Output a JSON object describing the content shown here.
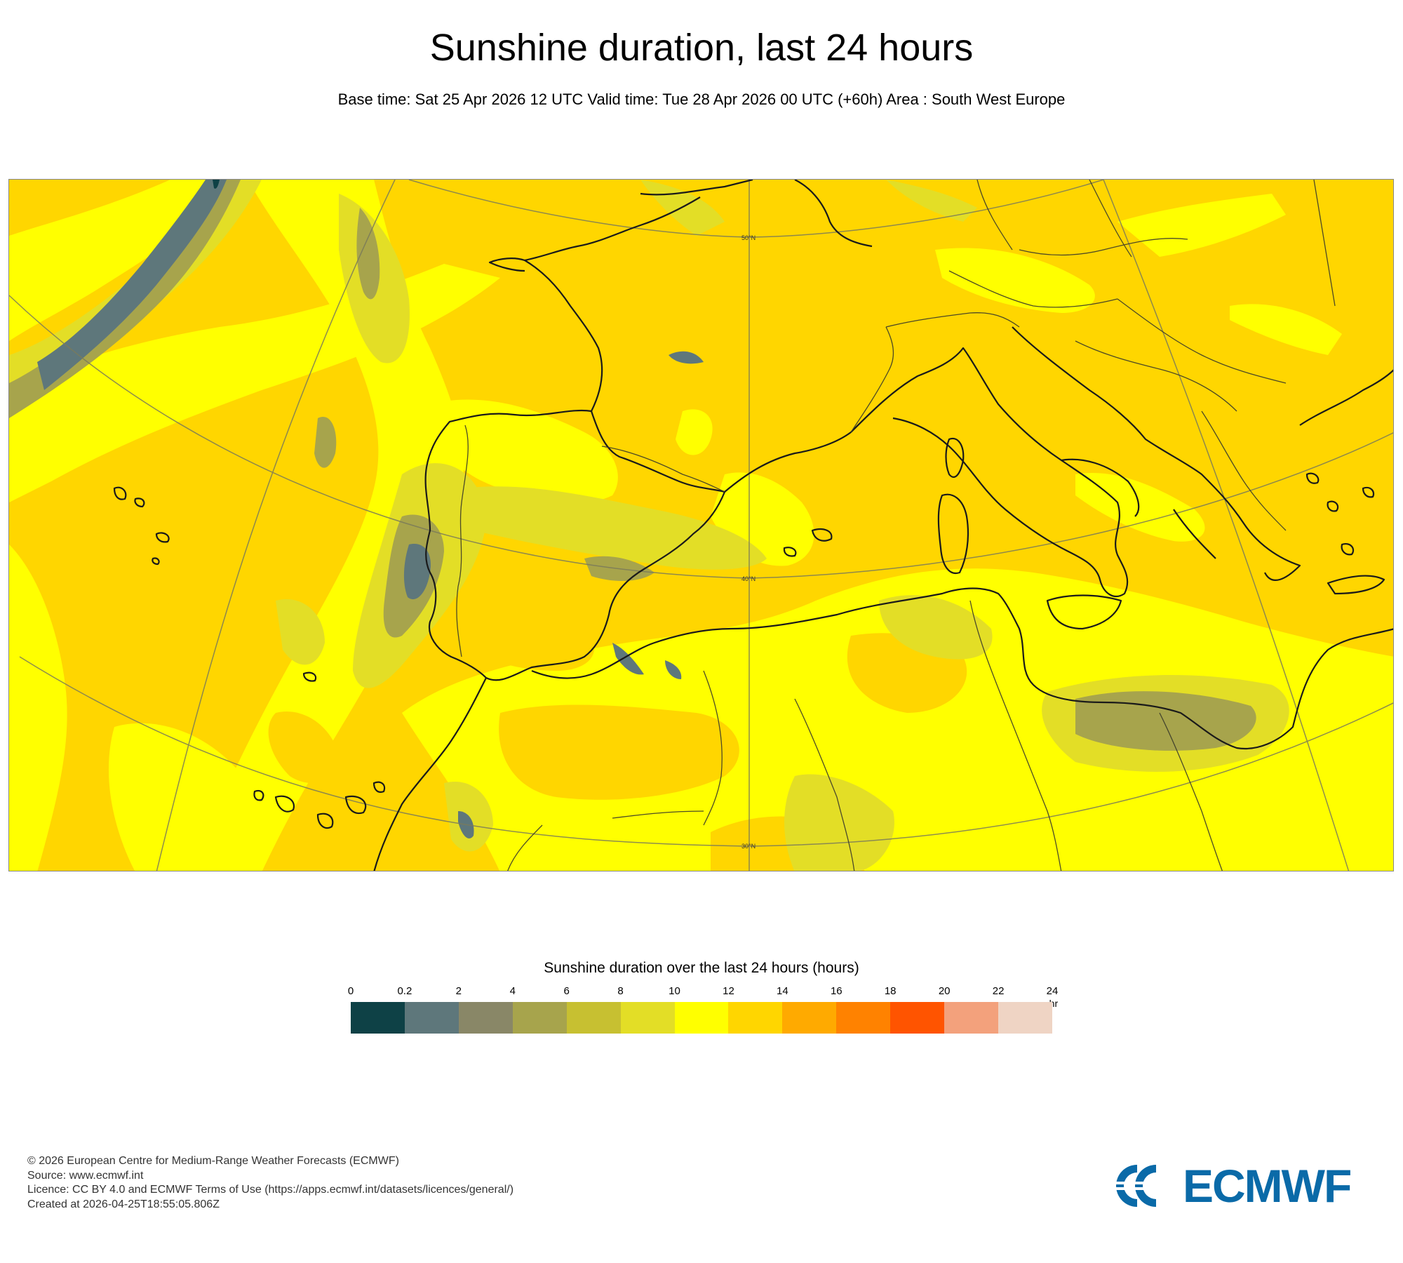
{
  "title": "Sunshine duration, last 24 hours",
  "subtitle": "Base time: Sat 25 Apr 2026 12 UTC Valid time: Tue 28 Apr 2026 00 UTC (+60h) Area : South West Europe",
  "map": {
    "latitude_labels": [
      "50°N",
      "40°N",
      "30°N"
    ],
    "colors": {
      "coast": "#1a1a1a",
      "graticule": "#7a7a5a"
    }
  },
  "colorbar": {
    "title": "Sunshine duration over the last 24 hours (hours)",
    "unit": "-hr",
    "ticks": [
      "0",
      "0.2",
      "2",
      "4",
      "6",
      "8",
      "10",
      "12",
      "14",
      "16",
      "18",
      "20",
      "22",
      "24"
    ],
    "colors": [
      "#0e4146",
      "#5e777b",
      "#898767",
      "#a7a44c",
      "#c7c031",
      "#e3de26",
      "#ffff00",
      "#ffd600",
      "#ffaa00",
      "#ff8200",
      "#ff5400",
      "#f3a17c",
      "#efd4c4"
    ]
  },
  "footer": {
    "line1": "© 2026 European Centre for Medium-Range Weather Forecasts (ECMWF)",
    "line2": "Source: www.ecmwf.int",
    "line3": "Licence: CC BY 4.0 and ECMWF Terms of Use (https://apps.ecmwf.int/datasets/licences/general/)",
    "line4": "Created at 2026-04-25T18:55:05.806Z"
  },
  "logo": {
    "text": "ECMWF",
    "color": "#0a6aa8"
  }
}
